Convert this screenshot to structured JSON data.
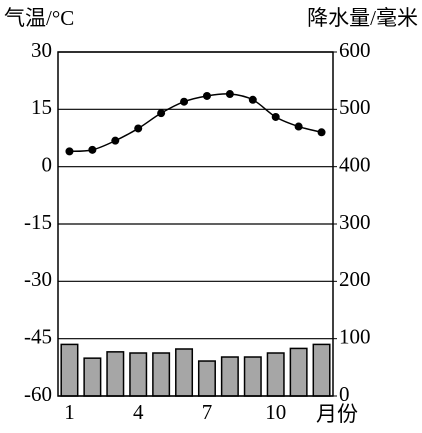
{
  "chart_data": {
    "type": "climate",
    "ylabel": "气温/°C",
    "y2label": "降水量/毫米",
    "xlabel": "月份",
    "x": [
      1,
      2,
      3,
      4,
      5,
      6,
      7,
      8,
      9,
      10,
      11,
      12
    ],
    "xlim": [
      0.5,
      12.5
    ],
    "xticks": [
      1,
      4,
      7,
      10
    ],
    "ylim": [
      -60,
      30
    ],
    "yticks": [
      -60,
      -45,
      -30,
      -15,
      0,
      15,
      30
    ],
    "y2lim": [
      0,
      600
    ],
    "y2ticks": [
      0,
      100,
      200,
      300,
      400,
      500,
      600
    ],
    "grid": true,
    "series": [
      {
        "type": "line",
        "color": "#000000",
        "values": [
          4,
          4.4,
          6.8,
          10,
          14,
          17,
          18.5,
          19,
          17.5,
          13,
          10.5,
          9
        ]
      },
      {
        "type": "bar",
        "axis": "y2",
        "color": "#a6a6a6",
        "values": [
          90,
          66,
          77,
          75,
          75,
          82,
          61,
          68,
          68,
          75,
          83,
          90
        ]
      }
    ]
  }
}
